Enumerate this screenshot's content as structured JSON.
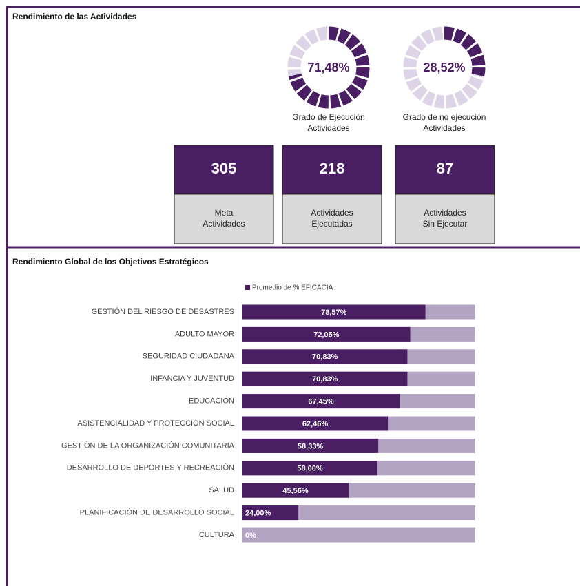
{
  "sections": [
    {
      "title": "Rendimiento de las Actividades"
    },
    {
      "title": "Rendimiento Global de los Objetivos Estratégicos"
    }
  ],
  "kpis": [
    {
      "value": 305,
      "label": [
        "Meta",
        "Actividades"
      ]
    },
    {
      "value": 218,
      "label": [
        "Actividades",
        "Ejecutadas"
      ]
    },
    {
      "value": 87,
      "label": [
        "Actividades",
        "Sin Ejecutar"
      ]
    }
  ],
  "chart_data": [
    {
      "type": "donut",
      "values": [
        71.48
      ],
      "value_labels": [
        "71,48%"
      ],
      "ylim": [
        0,
        100
      ],
      "caption": [
        "Grado de Ejecución",
        "Actividades"
      ],
      "color": "#4a1e62",
      "track_color": "#ddd5e7"
    },
    {
      "type": "donut",
      "values": [
        28.52
      ],
      "value_labels": [
        "28,52%"
      ],
      "ylim": [
        0,
        100
      ],
      "caption": [
        "Grado de no ejecución",
        "Actividades"
      ],
      "color": "#4a1e62",
      "track_color": "#ddd5e7"
    },
    {
      "type": "barh",
      "categories": [
        "GESTIÓN DEL RIESGO DE DESASTRES",
        "ADULTO MAYOR",
        "SEGURIDAD CIUDADANA",
        "INFANCIA Y JUVENTUD",
        "EDUCACIÓN",
        "ASISTENCIALIDAD Y PROTECCIÓN SOCIAL",
        "GESTIÓN DE LA ORGANIZACIÓN COMUNITARIA",
        "DESARROLLO DE DEPORTES Y RECREACIÓN",
        "SALUD",
        "PLANIFICACIÓN DE DESARROLLO SOCIAL",
        "CULTURA"
      ],
      "series": [
        {
          "name": "Promedio de % EFICACIA",
          "color": "#4a1e62",
          "values": [
            78.57,
            72.05,
            70.83,
            70.83,
            67.45,
            62.46,
            58.33,
            58.0,
            45.56,
            24.0,
            0
          ],
          "value_labels": [
            "78,57%",
            "72,05%",
            "70,83%",
            "70,83%",
            "67,45%",
            "62,46%",
            "58,33%",
            "58,00%",
            "45,56%",
            "24,00%",
            "0%"
          ]
        }
      ],
      "xlim": [
        0,
        100
      ],
      "track_color": "#b4a4c4",
      "legend": "top"
    }
  ]
}
